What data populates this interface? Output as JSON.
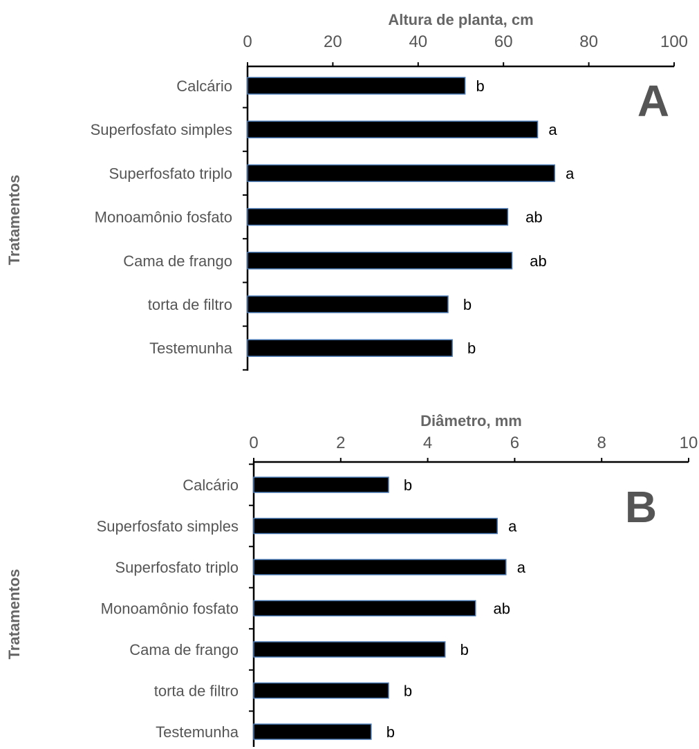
{
  "chart_data": [
    {
      "type": "bar",
      "orientation": "horizontal",
      "panel_label": "A",
      "title": "",
      "xlabel": "Altura de planta, cm",
      "ylabel": "Tratamentos",
      "xlim": [
        0,
        100
      ],
      "xticks": [
        "0",
        "20",
        "40",
        "60",
        "80",
        "100"
      ],
      "x_axis_position": "top",
      "grid": false,
      "categories": [
        "Calcário",
        "Superfosfato simples",
        "Superfosfato triplo",
        "Monoamônio fosfato",
        "Cama de frango",
        "torta de filtro",
        "Testemunha"
      ],
      "values": [
        51,
        68,
        72,
        61,
        62,
        47,
        48
      ],
      "significance_letters": [
        "b",
        "a",
        "a",
        "ab",
        "ab",
        "b",
        "b"
      ],
      "bar_color": "#000000",
      "bar_edge_color": "#4a7ab5"
    },
    {
      "type": "bar",
      "orientation": "horizontal",
      "panel_label": "B",
      "title": "",
      "xlabel": "Diâmetro, mm",
      "ylabel": "Tratamentos",
      "xlim": [
        0,
        10
      ],
      "xticks": [
        "0",
        "2",
        "4",
        "6",
        "8",
        "10"
      ],
      "x_axis_position": "top",
      "grid": false,
      "categories": [
        "Calcário",
        "Superfosfato simples",
        "Superfosfato triplo",
        "Monoamônio fosfato",
        "Cama de frango",
        "torta de filtro",
        "Testemunha"
      ],
      "values": [
        3.1,
        5.6,
        5.8,
        5.1,
        4.4,
        3.1,
        2.7
      ],
      "significance_letters": [
        "b",
        "a",
        "a",
        "ab",
        "b",
        "b",
        "b"
      ],
      "bar_color": "#000000",
      "bar_edge_color": "#4a7ab5"
    }
  ]
}
